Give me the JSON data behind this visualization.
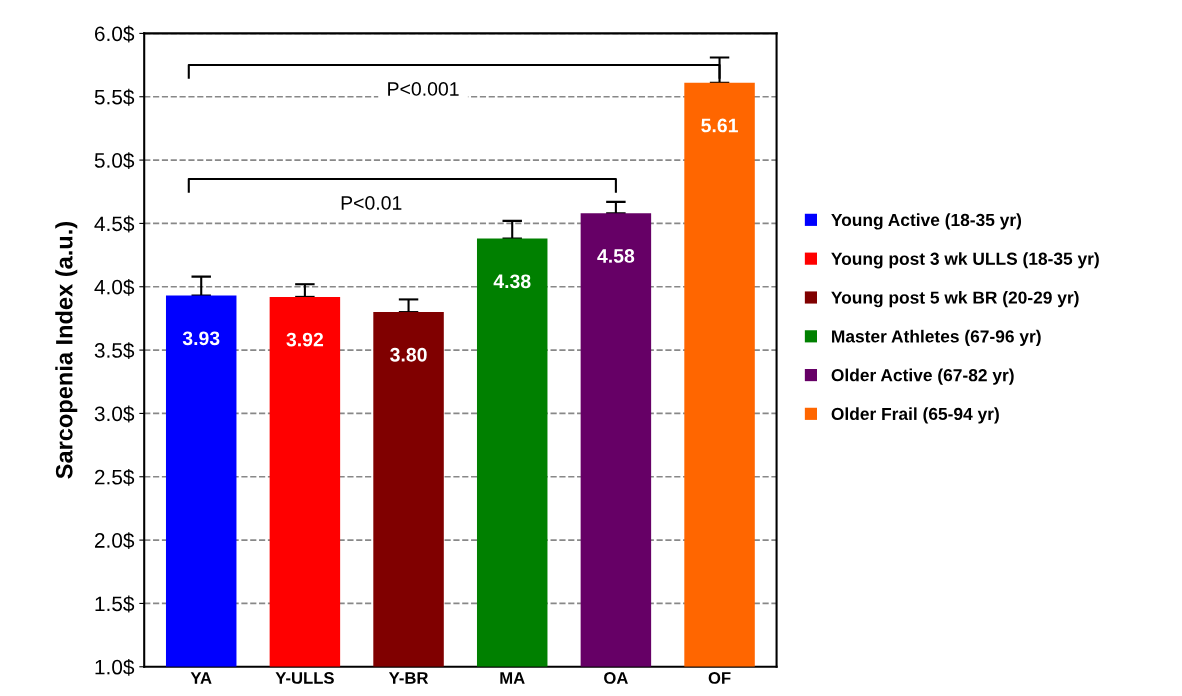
{
  "chart_data": {
    "type": "bar",
    "ylabel": "Sarcopenia Index (a.u.)",
    "categories": [
      "YA",
      "Y-ULLS",
      "Y-BR",
      "MA",
      "OA",
      "OF"
    ],
    "series": [
      {
        "name": "Young Active (18-35 yr)",
        "color": "#0000ff",
        "values": [
          3.93,
          null,
          null,
          null,
          null,
          null
        ],
        "errors": [
          0.15,
          null,
          null,
          null,
          null,
          null
        ],
        "value_labels": [
          "3.93",
          null,
          null,
          null,
          null,
          null
        ]
      },
      {
        "name": "Young post 3 wk ULLS (18-35 yr)",
        "color": "#ff0000",
        "values": [
          null,
          3.92,
          null,
          null,
          null,
          null
        ],
        "errors": [
          null,
          0.1,
          null,
          null,
          null,
          null
        ],
        "value_labels": [
          null,
          "3.92",
          null,
          null,
          null,
          null
        ]
      },
      {
        "name": "Young post 5 wk BR (20-29 yr)",
        "color": "#800000",
        "values": [
          null,
          null,
          3.8,
          null,
          null,
          null
        ],
        "errors": [
          null,
          null,
          0.1,
          null,
          null,
          null
        ],
        "value_labels": [
          null,
          null,
          "3.80",
          null,
          null,
          null
        ]
      },
      {
        "name": "Master Athletes (67-96 yr)",
        "color": "#008000",
        "values": [
          null,
          null,
          null,
          4.38,
          null,
          null
        ],
        "errors": [
          null,
          null,
          null,
          0.14,
          null,
          null
        ],
        "value_labels": [
          null,
          null,
          null,
          "4.38",
          null,
          null
        ]
      },
      {
        "name": "Older Active (67-82 yr)",
        "color": "#660066",
        "values": [
          null,
          null,
          null,
          null,
          4.58,
          null
        ],
        "errors": [
          null,
          null,
          null,
          null,
          0.09,
          null
        ],
        "value_labels": [
          null,
          null,
          null,
          null,
          "4.58",
          null
        ]
      },
      {
        "name": "Older Frail (65-94 yr)",
        "color": "#ff6600",
        "values": [
          null,
          null,
          null,
          null,
          null,
          5.61
        ],
        "errors": [
          null,
          null,
          null,
          null,
          null,
          0.2
        ],
        "value_labels": [
          null,
          null,
          null,
          null,
          null,
          "5.61"
        ]
      }
    ],
    "ylim": [
      1.0,
      6.0
    ],
    "yticks": [
      {
        "value": 1.0,
        "label": "1.0$"
      },
      {
        "value": 1.5,
        "label": "1.5$"
      },
      {
        "value": 2.0,
        "label": "2.0$"
      },
      {
        "value": 2.5,
        "label": "2.5$"
      },
      {
        "value": 3.0,
        "label": "3.0$"
      },
      {
        "value": 3.5,
        "label": "3.5$"
      },
      {
        "value": 4.0,
        "label": "4.0$"
      },
      {
        "value": 4.5,
        "label": "4.5$"
      },
      {
        "value": 5.0,
        "label": "5.0$"
      },
      {
        "value": 5.5,
        "label": "5.5$"
      },
      {
        "value": 6.0,
        "label": "6.0$"
      }
    ],
    "grid": "y",
    "legend": "right",
    "annotations": [
      "P<0.001",
      "P<0.01"
    ]
  }
}
